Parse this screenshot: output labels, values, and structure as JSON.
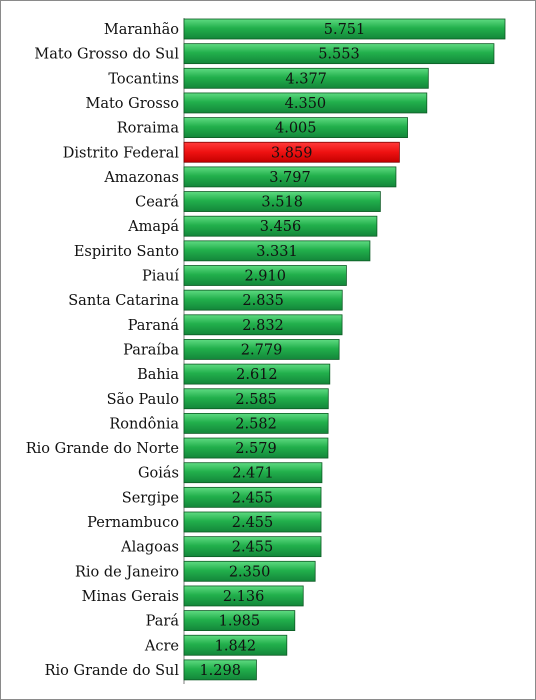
{
  "chart_data": {
    "type": "bar",
    "orientation": "horizontal",
    "title": "",
    "xlabel": "",
    "ylabel": "",
    "xlim": [
      0,
      6000
    ],
    "grid": false,
    "legend": "none",
    "colors": {
      "default": "#22b04c",
      "highlight": "#ee1111",
      "border": "#0d5a24"
    },
    "highlight_category": "Distrito Federal",
    "categories": [
      "Maranhão",
      "Mato Grosso do Sul",
      "Tocantins",
      "Mato Grosso",
      "Roraima",
      "Distrito Federal",
      "Amazonas",
      "Ceará",
      "Amapá",
      "Espirito Santo",
      "Piauí",
      "Santa Catarina",
      "Paraná",
      "Paraíba",
      "Bahia",
      "São Paulo",
      "Rondônia",
      "Rio Grande do Norte",
      "Goiás",
      "Sergipe",
      "Pernambuco",
      "Alagoas",
      "Rio de Janeiro",
      "Minas Gerais",
      "Pará",
      "Acre",
      "Rio Grande do Sul"
    ],
    "values": [
      5751,
      5553,
      4377,
      4350,
      4005,
      3859,
      3797,
      3518,
      3456,
      3331,
      2910,
      2835,
      2832,
      2779,
      2612,
      2585,
      2582,
      2579,
      2471,
      2455,
      2455,
      2455,
      2350,
      2136,
      1985,
      1842,
      1298
    ],
    "value_labels": [
      "5.751",
      "5.553",
      "4.377",
      "4.350",
      "4.005",
      "3.859",
      "3.797",
      "3.518",
      "3.456",
      "3.331",
      "2.910",
      "2.835",
      "2.832",
      "2.779",
      "2.612",
      "2.585",
      "2.582",
      "2.579",
      "2.471",
      "2.455",
      "2.455",
      "2.455",
      "2.350",
      "2.136",
      "1.985",
      "1.842",
      "1.298"
    ]
  }
}
